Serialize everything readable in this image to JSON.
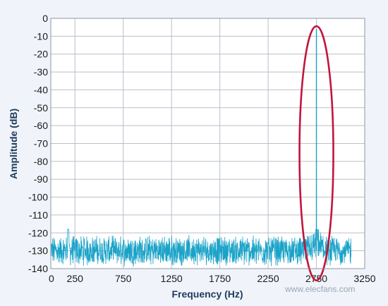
{
  "chart_data": {
    "type": "line",
    "title": "",
    "xlabel": "Frequency (Hz)",
    "ylabel": "Amplitude (dB)",
    "xlim": [
      0,
      3250
    ],
    "ylim": [
      -140,
      0
    ],
    "x_ticks": [
      0,
      250,
      750,
      1250,
      1750,
      2250,
      2750,
      3250
    ],
    "x_tick_labels": [
      "0",
      "250",
      "750",
      "1250",
      "1750",
      "2250",
      "2750",
      "3250"
    ],
    "y_ticks": [
      0,
      -10,
      -20,
      -30,
      -40,
      -50,
      -60,
      -70,
      -80,
      -90,
      -100,
      -110,
      -120,
      -130,
      -140
    ],
    "y_tick_labels": [
      "0",
      "-10",
      "-20",
      "-30",
      "-40",
      "-50",
      "-60",
      "-70",
      "-80",
      "-90",
      "-100",
      "-110",
      "-120",
      "-130",
      "-140"
    ],
    "grid": true,
    "series_color": "#1aa3c8",
    "noise_floor": {
      "x_range": [
        0,
        3110
      ],
      "min_db": -140,
      "max_db": -118,
      "typical_db": -130
    },
    "spur_near_zero": {
      "x": 180,
      "y": -118
    },
    "peak": {
      "x": 2750,
      "y": -6
    },
    "peak_skirt": {
      "x_range": [
        2650,
        2850
      ],
      "y": -118
    },
    "annotation": {
      "type": "ellipse",
      "around_x": 2750,
      "y_range": [
        -6,
        -145
      ],
      "color": "#c0163c"
    }
  },
  "watermark": "www.elecfans.com"
}
